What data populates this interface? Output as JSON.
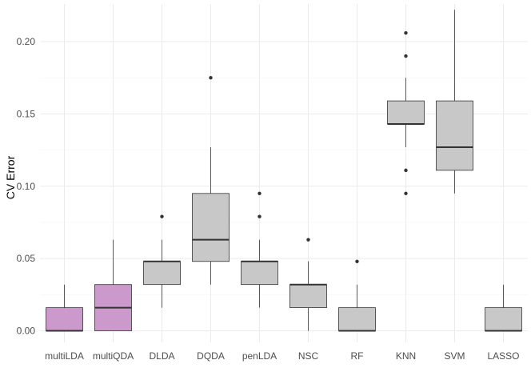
{
  "chart_data": {
    "type": "box",
    "title": "",
    "xlabel": "",
    "ylabel": "CV Error",
    "ylim": [
      -0.008,
      0.226
    ],
    "yticks": [
      0.0,
      0.05,
      0.1,
      0.15,
      0.2
    ],
    "ytick_labels": [
      "0.00",
      "0.05",
      "0.10",
      "0.15",
      "0.20"
    ],
    "grid": true,
    "categories": [
      "multiLDA",
      "multiQDA",
      "DLDA",
      "DQDA",
      "penLDA",
      "NSC",
      "RF",
      "KNN",
      "SVM",
      "LASSO"
    ],
    "boxes": [
      {
        "q1": 0.0,
        "median": 0.0,
        "q3": 0.016,
        "whisker_low": 0.0,
        "whisker_high": 0.032,
        "outliers": [],
        "highlight": true
      },
      {
        "q1": 0.0,
        "median": 0.016,
        "q3": 0.032,
        "whisker_low": 0.0,
        "whisker_high": 0.063,
        "outliers": [],
        "highlight": true
      },
      {
        "q1": 0.032,
        "median": 0.048,
        "q3": 0.048,
        "whisker_low": 0.016,
        "whisker_high": 0.063,
        "outliers": [
          0.079
        ],
        "highlight": false
      },
      {
        "q1": 0.048,
        "median": 0.063,
        "q3": 0.095,
        "whisker_low": 0.032,
        "whisker_high": 0.127,
        "outliers": [
          0.175
        ],
        "highlight": false
      },
      {
        "q1": 0.032,
        "median": 0.048,
        "q3": 0.048,
        "whisker_low": 0.016,
        "whisker_high": 0.063,
        "outliers": [
          0.079,
          0.095
        ],
        "highlight": false
      },
      {
        "q1": 0.016,
        "median": 0.032,
        "q3": 0.032,
        "whisker_low": 0.0,
        "whisker_high": 0.048,
        "outliers": [
          0.063
        ],
        "highlight": false
      },
      {
        "q1": 0.0,
        "median": 0.0,
        "q3": 0.016,
        "whisker_low": 0.0,
        "whisker_high": 0.032,
        "outliers": [
          0.048
        ],
        "highlight": false
      },
      {
        "q1": 0.143,
        "median": 0.143,
        "q3": 0.159,
        "whisker_low": 0.127,
        "whisker_high": 0.175,
        "outliers": [
          0.095,
          0.111,
          0.19,
          0.206
        ],
        "highlight": false
      },
      {
        "q1": 0.111,
        "median": 0.127,
        "q3": 0.159,
        "whisker_low": 0.095,
        "whisker_high": 0.222,
        "outliers": [],
        "highlight": false
      },
      {
        "q1": 0.0,
        "median": 0.0,
        "q3": 0.016,
        "whisker_low": 0.0,
        "whisker_high": 0.032,
        "outliers": [],
        "highlight": false
      }
    ],
    "colors": {
      "highlight_fill": "#cc99cc",
      "default_fill": "#c8c8c8",
      "stroke": "#333333",
      "grid_major": "#ebebeb",
      "grid_minor": "#f4f4f4"
    }
  }
}
